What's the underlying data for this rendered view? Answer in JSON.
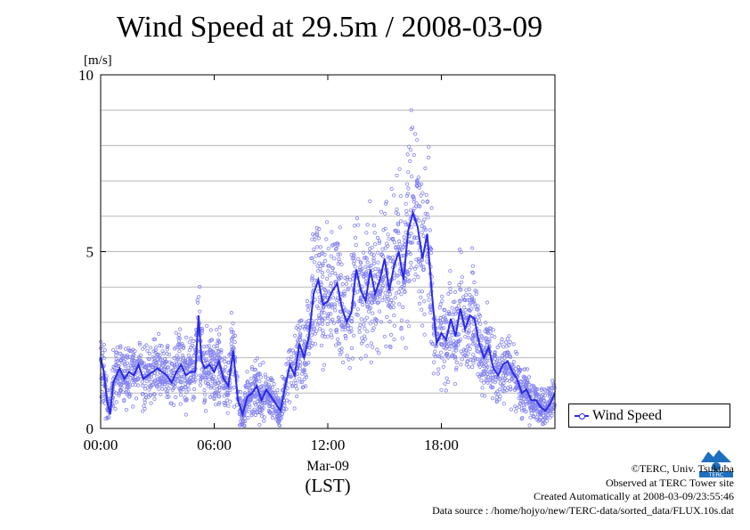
{
  "title": "Wind Speed at 29.5m / 2008-03-09",
  "chart_data": {
    "type": "scatter",
    "ylabel": "[m/s]",
    "xlim": [
      0,
      24
    ],
    "ylim": [
      0,
      10
    ],
    "x_ticks": [
      {
        "value": 0,
        "label": "00:00"
      },
      {
        "value": 6,
        "label": "06:00"
      },
      {
        "value": 12,
        "label": "12:00"
      },
      {
        "value": 18,
        "label": "18:00"
      }
    ],
    "date_label": "Mar-09",
    "time_zone_label": "(LST)",
    "y_ticks": [
      0,
      5,
      10
    ],
    "grid": true,
    "legend_position": "right-bottom",
    "series": [
      {
        "name": "Wind Speed",
        "color": "#2a2ae6",
        "marker_color": "#8080f0",
        "mean_line": {
          "x": [
            0,
            0.17,
            0.33,
            0.5,
            0.67,
            0.83,
            1,
            1.25,
            1.5,
            1.75,
            2,
            2.25,
            2.5,
            2.75,
            3,
            3.25,
            3.5,
            3.75,
            4,
            4.25,
            4.5,
            4.75,
            5,
            5.17,
            5.33,
            5.5,
            5.75,
            6,
            6.25,
            6.5,
            6.75,
            7,
            7.25,
            7.5,
            7.75,
            8,
            8.25,
            8.5,
            8.75,
            9,
            9.25,
            9.5,
            9.75,
            10,
            10.25,
            10.5,
            10.75,
            11,
            11.25,
            11.5,
            11.75,
            12,
            12.25,
            12.5,
            12.75,
            13,
            13.25,
            13.5,
            13.75,
            14,
            14.25,
            14.5,
            14.75,
            15,
            15.25,
            15.5,
            15.75,
            16,
            16.25,
            16.5,
            16.75,
            17,
            17.25,
            17.5,
            17.75,
            18,
            18.25,
            18.5,
            18.75,
            19,
            19.25,
            19.5,
            19.75,
            20,
            20.25,
            20.5,
            20.75,
            21,
            21.25,
            21.5,
            21.75,
            22,
            22.25,
            22.5,
            22.75,
            23,
            23.25,
            23.5,
            23.75,
            24
          ],
          "y": [
            2.0,
            1.6,
            0.8,
            0.4,
            1.3,
            1.5,
            1.7,
            1.4,
            1.6,
            1.5,
            1.8,
            1.4,
            1.5,
            1.6,
            1.7,
            1.6,
            1.5,
            1.3,
            1.6,
            1.8,
            1.5,
            1.6,
            1.6,
            3.2,
            1.9,
            1.7,
            1.8,
            1.6,
            1.9,
            1.4,
            1.2,
            2.2,
            0.8,
            0.4,
            0.9,
            1.0,
            1.2,
            0.8,
            1.1,
            0.9,
            0.7,
            0.5,
            1.2,
            1.8,
            1.5,
            2.4,
            2.0,
            2.6,
            3.8,
            4.2,
            3.5,
            3.6,
            3.9,
            4.1,
            3.4,
            3.0,
            3.3,
            4.5,
            3.9,
            3.6,
            4.5,
            3.8,
            4.2,
            4.8,
            3.9,
            4.6,
            5.0,
            4.2,
            5.6,
            6.1,
            5.7,
            4.8,
            5.5,
            3.8,
            2.4,
            2.7,
            2.5,
            3.1,
            2.6,
            3.4,
            2.8,
            3.2,
            3.1,
            2.4,
            2.0,
            2.3,
            1.7,
            1.5,
            1.8,
            1.9,
            1.6,
            1.4,
            1.0,
            1.1,
            0.8,
            0.8,
            0.6,
            0.5,
            0.7,
            1.0
          ]
        }
      }
    ]
  },
  "credits": {
    "copyright": "©TERC, Univ. Tsukuba",
    "site": "Observed at TERC Tower site",
    "created": "Created Automatically at 2008-03-09/23:55:46",
    "source": "Data source : /home/hojyo/new/TERC-data/sorted_data/FLUX.10s.dat"
  },
  "logo": {
    "text": "TERC",
    "color": "#1f6fc0"
  }
}
